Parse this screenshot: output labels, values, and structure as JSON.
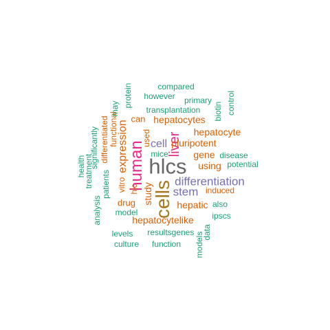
{
  "colors": {
    "teal": "#1b9e77",
    "orange": "#d95f02",
    "purple": "#7570b3",
    "magenta": "#e7298a",
    "brown": "#a6761d",
    "gray": "#666666"
  },
  "words": [
    {
      "text": "hlcs",
      "color": "gray",
      "vertical": false
    },
    {
      "text": "cells",
      "color": "brown",
      "vertical": true
    },
    {
      "text": "human",
      "color": "magenta",
      "vertical": true
    },
    {
      "text": "liver",
      "color": "magenta",
      "vertical": true
    },
    {
      "text": "differentiation",
      "color": "purple",
      "vertical": false
    },
    {
      "text": "stem",
      "color": "purple",
      "vertical": false
    },
    {
      "text": "cell",
      "color": "purple",
      "vertical": false
    },
    {
      "text": "hepatocytes",
      "color": "orange",
      "vertical": false
    },
    {
      "text": "expression",
      "color": "orange",
      "vertical": true
    },
    {
      "text": "hepatocytelike",
      "color": "orange",
      "vertical": false
    },
    {
      "text": "hepatic",
      "color": "orange",
      "vertical": false
    },
    {
      "text": "using",
      "color": "orange",
      "vertical": false
    },
    {
      "text": "gene",
      "color": "orange",
      "vertical": false
    },
    {
      "text": "pluripotent",
      "color": "orange",
      "vertical": false
    },
    {
      "text": "hepatocyte",
      "color": "orange",
      "vertical": false
    },
    {
      "text": "study",
      "color": "orange",
      "vertical": true
    },
    {
      "text": "drug",
      "color": "orange",
      "vertical": false
    },
    {
      "text": "can",
      "color": "orange",
      "vertical": false
    },
    {
      "text": "functional",
      "color": "orange",
      "vertical": true
    },
    {
      "text": "differentiated",
      "color": "orange",
      "vertical": true
    },
    {
      "text": "vitro",
      "color": "orange",
      "vertical": true
    },
    {
      "text": "used",
      "color": "orange",
      "vertical": true
    },
    {
      "text": "induced",
      "color": "orange",
      "vertical": false
    },
    {
      "text": "hlc",
      "color": "orange",
      "vertical": true
    },
    {
      "text": "compared",
      "color": "teal",
      "vertical": false
    },
    {
      "text": "however",
      "color": "teal",
      "vertical": false
    },
    {
      "text": "primary",
      "color": "teal",
      "vertical": false
    },
    {
      "text": "protein",
      "color": "teal",
      "vertical": true
    },
    {
      "text": "may",
      "color": "teal",
      "vertical": true
    },
    {
      "text": "transplantation",
      "color": "teal",
      "vertical": false
    },
    {
      "text": "biotin",
      "color": "teal",
      "vertical": true
    },
    {
      "text": "control",
      "color": "teal",
      "vertical": true
    },
    {
      "text": "significantly",
      "color": "teal",
      "vertical": true
    },
    {
      "text": "health",
      "color": "teal",
      "vertical": true
    },
    {
      "text": "treatment",
      "color": "teal",
      "vertical": true
    },
    {
      "text": "patients",
      "color": "teal",
      "vertical": true
    },
    {
      "text": "analysis",
      "color": "teal",
      "vertical": true
    },
    {
      "text": "mice",
      "color": "teal",
      "vertical": false
    },
    {
      "text": "disease",
      "color": "teal",
      "vertical": false
    },
    {
      "text": "potential",
      "color": "teal",
      "vertical": false
    },
    {
      "text": "also",
      "color": "teal",
      "vertical": false
    },
    {
      "text": "ipscs",
      "color": "teal",
      "vertical": false
    },
    {
      "text": "model",
      "color": "teal",
      "vertical": false
    },
    {
      "text": "levels",
      "color": "teal",
      "vertical": false
    },
    {
      "text": "results",
      "color": "teal",
      "vertical": false
    },
    {
      "text": "genes",
      "color": "teal",
      "vertical": false
    },
    {
      "text": "data",
      "color": "teal",
      "vertical": true
    },
    {
      "text": "models",
      "color": "teal",
      "vertical": true
    },
    {
      "text": "culture",
      "color": "teal",
      "vertical": false
    },
    {
      "text": "function",
      "color": "teal",
      "vertical": false
    }
  ]
}
